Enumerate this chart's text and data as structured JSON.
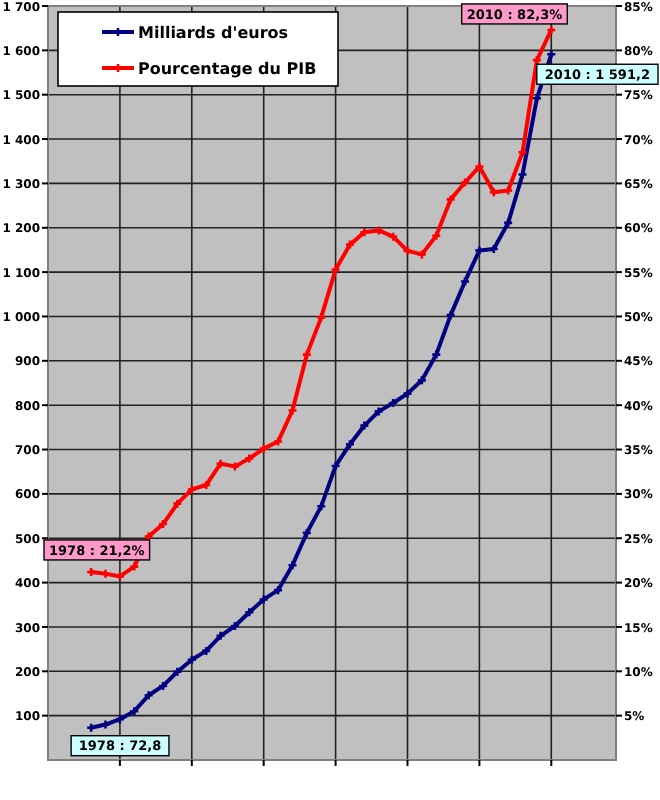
{
  "chart_data": {
    "type": "line",
    "categories": [
      null,
      null,
      null,
      null,
      null,
      null,
      null,
      null,
      null,
      null,
      null,
      null,
      null,
      null,
      null,
      null,
      null,
      null,
      null,
      null,
      null,
      null,
      null,
      null,
      null,
      null,
      null,
      null,
      null,
      null,
      null,
      null,
      null
    ],
    "ylim": [
      0,
      1700
    ],
    "yticks": [
      {
        "value": 100,
        "label": "100"
      },
      {
        "value": 200,
        "label": "200"
      },
      {
        "value": 300,
        "label": "300"
      },
      {
        "value": 400,
        "label": "400"
      },
      {
        "value": 500,
        "label": "500"
      },
      {
        "value": 600,
        "label": "600"
      },
      {
        "value": 700,
        "label": "700"
      },
      {
        "value": 800,
        "label": "800"
      },
      {
        "value": 900,
        "label": "900"
      },
      {
        "value": 1000,
        "label": "1 000"
      },
      {
        "value": 1100,
        "label": "1 100"
      },
      {
        "value": 1200,
        "label": "1 200"
      },
      {
        "value": 1300,
        "label": "1 300"
      },
      {
        "value": 1400,
        "label": "1 400"
      },
      {
        "value": 1500,
        "label": "1 500"
      },
      {
        "value": 1600,
        "label": "1 600"
      },
      {
        "value": 1700,
        "label": "1 700"
      }
    ],
    "y2lim": [
      0,
      85
    ],
    "y2ticks": [
      {
        "value": 5,
        "label": "5%"
      },
      {
        "value": 10,
        "label": "10%"
      },
      {
        "value": 15,
        "label": "15%"
      },
      {
        "value": 20,
        "label": "20%"
      },
      {
        "value": 25,
        "label": "25%"
      },
      {
        "value": 30,
        "label": "30%"
      },
      {
        "value": 35,
        "label": "35%"
      },
      {
        "value": 40,
        "label": "40%"
      },
      {
        "value": 45,
        "label": "45%"
      },
      {
        "value": 50,
        "label": "50%"
      },
      {
        "value": 55,
        "label": "55%"
      },
      {
        "value": 60,
        "label": "60%"
      },
      {
        "value": 65,
        "label": "65%"
      },
      {
        "value": 70,
        "label": "70%"
      },
      {
        "value": 75,
        "label": "75%"
      },
      {
        "value": 80,
        "label": "80%"
      },
      {
        "value": 85,
        "label": "85%"
      }
    ],
    "series": [
      {
        "name": "Milliards d'euros",
        "color": "#000080",
        "values": [
          72.8,
          80,
          92,
          110,
          146,
          167,
          199,
          226,
          246,
          280,
          302,
          333,
          362,
          383,
          439,
          512,
          572,
          663,
          712,
          754,
          786,
          805,
          826,
          856,
          914,
          1003,
          1079,
          1149,
          1152,
          1211,
          1320,
          1492,
          1591.2
        ]
      },
      {
        "name": "Pourcentage du PIB",
        "color": "#ff0000",
        "axis": "y2",
        "values": [
          21.2,
          21,
          20.7,
          21.8,
          25.2,
          26.6,
          28.9,
          30.5,
          31,
          33.4,
          33.1,
          34,
          35.1,
          35.9,
          39.4,
          45.7,
          49.9,
          55.3,
          58.1,
          59.5,
          59.7,
          59,
          57.4,
          57,
          59.1,
          63.2,
          65.1,
          66.9,
          64,
          64.2,
          68.5,
          78.9,
          82.3
        ]
      }
    ],
    "annotations": [
      "1978 : 21,2%",
      "2010 : 82,3%",
      "2010 : 1 591,2",
      "1978 : 72,8"
    ],
    "grid": true,
    "legend": "top left",
    "marker": "cross",
    "line_style": "solid"
  }
}
